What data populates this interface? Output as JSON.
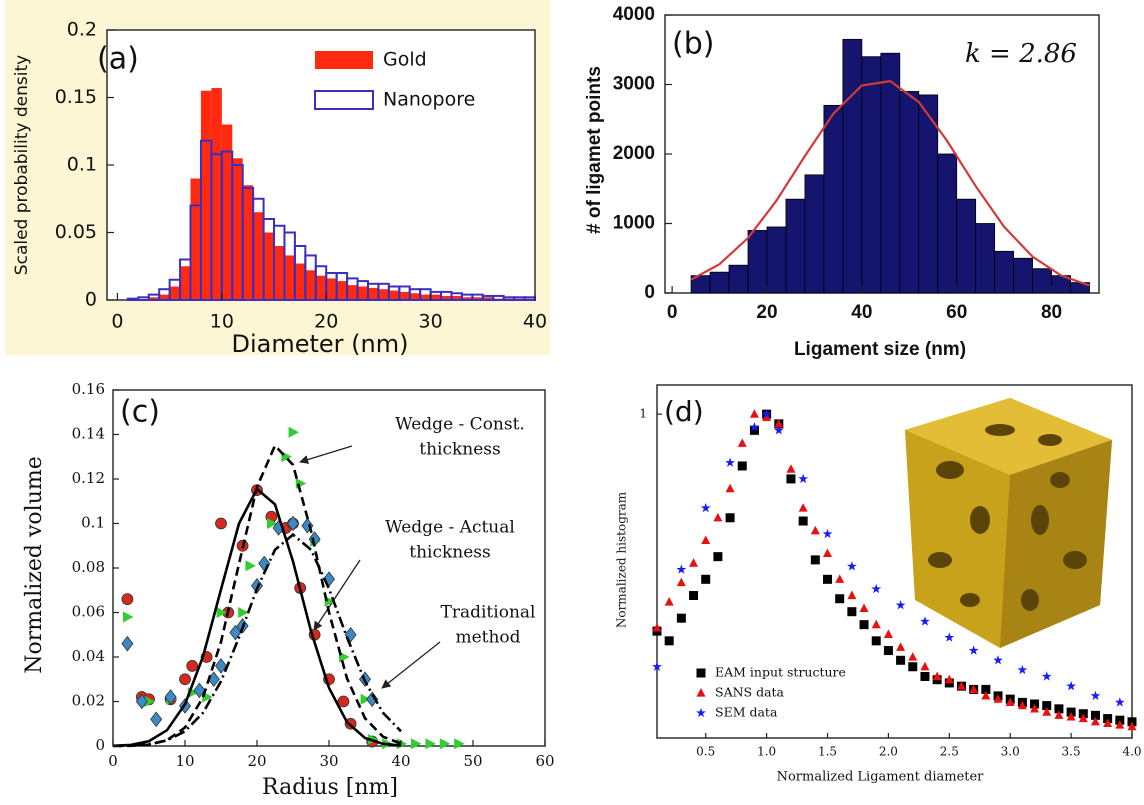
{
  "chart_data": [
    {
      "type": "histogram",
      "label": "(a)",
      "x_label": "Diameter (nm)",
      "y_label": "Scaled probability density",
      "xlim": [
        -1,
        40
      ],
      "ylim": [
        0,
        0.2
      ],
      "xticks": [
        0,
        10,
        20,
        30,
        40
      ],
      "yticks": [
        0,
        0.05,
        0.1,
        0.15,
        0.2
      ],
      "legend": "upper right",
      "bins": [
        0,
        1,
        2,
        3,
        4,
        5,
        6,
        7,
        8,
        9,
        10,
        11,
        12,
        13,
        14,
        15,
        16,
        17,
        18,
        19,
        20,
        21,
        22,
        23,
        24,
        25,
        26,
        27,
        28,
        29,
        30,
        31,
        32,
        33,
        34,
        35,
        36,
        37,
        38,
        39,
        40
      ],
      "series": [
        {
          "name": "Gold",
          "color": "#ff2a10",
          "fill": true,
          "values": [
            0,
            0,
            0,
            0.002,
            0.004,
            0.01,
            0.025,
            0.09,
            0.155,
            0.157,
            0.13,
            0.105,
            0.085,
            0.065,
            0.05,
            0.04,
            0.033,
            0.027,
            0.022,
            0.018,
            0.016,
            0.014,
            0.011,
            0.01,
            0.009,
            0.008,
            0.007,
            0.006,
            0.005,
            0.004,
            0.004,
            0.003,
            0.003,
            0.002,
            0.002,
            0.002,
            0.001,
            0.001,
            0.001,
            0.001
          ]
        },
        {
          "name": "Nanopore",
          "color": "#3a2fc0",
          "fill": false,
          "values": [
            0,
            0.001,
            0.002,
            0.004,
            0.008,
            0.015,
            0.03,
            0.07,
            0.118,
            0.108,
            0.11,
            0.1,
            0.083,
            0.075,
            0.06,
            0.055,
            0.05,
            0.04,
            0.033,
            0.025,
            0.02,
            0.02,
            0.016,
            0.014,
            0.012,
            0.012,
            0.01,
            0.01,
            0.008,
            0.008,
            0.006,
            0.006,
            0.005,
            0.004,
            0.004,
            0.003,
            0.003,
            0.002,
            0.002,
            0.002
          ]
        }
      ]
    },
    {
      "type": "histogram",
      "label": "(b)",
      "annotation": "k = 2.86",
      "x_label": "Ligament size (nm)",
      "y_label": "# of ligamet points",
      "xlim": [
        -1.5,
        90
      ],
      "ylim": [
        0,
        4000
      ],
      "xticks": [
        0,
        20,
        40,
        60,
        80
      ],
      "yticks": [
        0,
        1000,
        2000,
        3000,
        4000
      ],
      "bins": [
        4,
        8,
        12,
        16,
        20,
        24,
        28,
        32,
        36,
        40,
        44,
        48,
        52,
        56,
        60,
        64,
        68,
        72,
        76,
        80,
        84,
        88
      ],
      "series": [
        {
          "color": "#15146e",
          "fill": true,
          "values": [
            250,
            300,
            400,
            900,
            950,
            1350,
            1700,
            2700,
            3650,
            3400,
            3450,
            2900,
            2850,
            2000,
            1350,
            1000,
            600,
            500,
            350,
            250,
            150
          ]
        }
      ],
      "curves": [
        {
          "color": "#d23a3a",
          "dash": "solid",
          "x": [
            4,
            10,
            16,
            22,
            28,
            34,
            40,
            46,
            52,
            58,
            64,
            70,
            76,
            82,
            88
          ],
          "values": [
            193,
            415,
            791,
            1329,
            1971,
            2582,
            2986,
            3049,
            2748,
            2187,
            1537,
            952,
            523,
            252,
            108
          ]
        }
      ]
    },
    {
      "type": "scatter",
      "label": "(c)",
      "x_label": "Radius [nm]",
      "y_label": "Normalized volume",
      "xlim": [
        0,
        60
      ],
      "ylim": [
        0,
        0.16
      ],
      "xticks": [
        0,
        10,
        20,
        30,
        40,
        50,
        60
      ],
      "yticks": [
        0,
        0.02,
        0.04,
        0.06,
        0.08,
        0.1,
        0.12,
        0.14,
        0.16
      ],
      "annotations": [
        [
          "Wedge - Const.",
          "thickness"
        ],
        [
          "Wedge - Actual",
          "thickness"
        ],
        [
          "Traditional",
          "method"
        ]
      ],
      "series": [
        {
          "color": "#d42a1e",
          "marker": "circle",
          "x": [
            2,
            4,
            5,
            8,
            10,
            11,
            13,
            15,
            16,
            18,
            20,
            22,
            24,
            25,
            26,
            28,
            30,
            32,
            33,
            36
          ],
          "values": [
            0.066,
            0.022,
            0.021,
            0.021,
            0.03,
            0.036,
            0.04,
            0.1,
            0.06,
            0.09,
            0.115,
            0.103,
            0.098,
            0.1,
            0.071,
            0.05,
            0.03,
            0.02,
            0.01,
            0.002
          ]
        },
        {
          "color": "#33cc33",
          "marker": "triangle-right",
          "x": [
            2,
            5,
            8,
            11,
            13,
            15,
            18,
            19,
            22,
            24,
            25,
            26,
            28,
            30,
            32,
            35,
            36,
            38,
            40,
            42,
            44,
            46,
            48
          ],
          "values": [
            0.058,
            0.02,
            0.021,
            0.024,
            0.022,
            0.06,
            0.06,
            0.081,
            0.1,
            0.13,
            0.141,
            0.118,
            0.092,
            0.065,
            0.04,
            0.021,
            0.003,
            0.001,
            0.001,
            0.001,
            0.001,
            0.001,
            0.001
          ]
        },
        {
          "color": "#3a8ac8",
          "marker": "diamond",
          "x": [
            2,
            4,
            6,
            8,
            10,
            12,
            14,
            15,
            17,
            18,
            20,
            21,
            23,
            25,
            27,
            28,
            30,
            33,
            35,
            36
          ],
          "values": [
            0.046,
            0.02,
            0.012,
            0.022,
            0.018,
            0.025,
            0.03,
            0.036,
            0.051,
            0.054,
            0.072,
            0.082,
            0.098,
            0.1,
            0.099,
            0.093,
            0.075,
            0.05,
            0.03,
            0.021
          ]
        }
      ],
      "curves": [
        {
          "color": "#000000",
          "dash": "solid",
          "x": [
            0,
            2.5,
            5,
            7.5,
            10,
            12.5,
            15,
            17.5,
            20,
            22.5,
            25,
            27.5,
            30,
            32.5,
            35,
            37.5,
            40
          ],
          "values": [
            0.0001,
            0.0005,
            0.0022,
            0.0071,
            0.0188,
            0.0402,
            0.0704,
            0.1,
            0.1155,
            0.1086,
            0.083,
            0.0516,
            0.0261,
            0.0107,
            0.0036,
            0.001,
            0.0002
          ]
        },
        {
          "color": "#000000",
          "dash": "dashed",
          "x": [
            0,
            2.5,
            5,
            7.5,
            10,
            12.5,
            15,
            17.5,
            20,
            22.5,
            25,
            27.5,
            30,
            32.5,
            35,
            37.5,
            40
          ],
          "values": [
            0,
            0.0001,
            0.0006,
            0.0026,
            0.0083,
            0.0219,
            0.0468,
            0.0819,
            0.1164,
            0.135,
            0.1264,
            0.0967,
            0.0601,
            0.0304,
            0.0125,
            0.0042,
            0.0011
          ]
        },
        {
          "color": "#000000",
          "dash": "dashdot",
          "x": [
            0,
            2.5,
            5,
            7.5,
            10,
            12.5,
            15,
            17.5,
            20,
            22.5,
            25,
            27.5,
            30,
            32.5,
            35,
            37.5,
            40
          ],
          "values": [
            0.0001,
            0.0002,
            0.0008,
            0.0025,
            0.0066,
            0.0149,
            0.0291,
            0.0488,
            0.0707,
            0.0882,
            0.095,
            0.0882,
            0.0707,
            0.0488,
            0.0291,
            0.0149,
            0.0066
          ]
        }
      ]
    },
    {
      "type": "scatter",
      "label": "(d)",
      "x_label": "Normalized Ligament diameter",
      "y_label": "Normalized histogram",
      "xlim": [
        0.1,
        4.0
      ],
      "ylim": [
        0,
        1.09
      ],
      "xticks": [
        0.5,
        {
          "value": 1,
          "label": "1.0"
        },
        1.5,
        {
          "value": 2,
          "label": "2.0"
        },
        2.5,
        {
          "value": 3,
          "label": "3.0"
        },
        3.5,
        {
          "value": 4,
          "label": "4.0"
        }
      ],
      "yticks": [
        1
      ],
      "legend": "lower left",
      "series": [
        {
          "name": "EAM input structure",
          "color": "#000000",
          "marker": "square",
          "x": [
            0.1,
            0.2,
            0.3,
            0.4,
            0.5,
            0.6,
            0.7,
            0.8,
            0.9,
            1.0,
            1.1,
            1.2,
            1.3,
            1.4,
            1.5,
            1.6,
            1.7,
            1.8,
            1.9,
            2.0,
            2.1,
            2.2,
            2.3,
            2.4,
            2.5,
            2.6,
            2.7,
            2.8,
            2.9,
            3.0,
            3.1,
            3.2,
            3.3,
            3.4,
            3.5,
            3.6,
            3.7,
            3.8,
            3.9,
            4.0
          ],
          "values": [
            0.33,
            0.3,
            0.37,
            0.44,
            0.49,
            0.56,
            0.68,
            0.84,
            0.95,
            1.0,
            0.97,
            0.8,
            0.67,
            0.55,
            0.49,
            0.43,
            0.39,
            0.35,
            0.3,
            0.27,
            0.24,
            0.22,
            0.19,
            0.18,
            0.17,
            0.16,
            0.15,
            0.15,
            0.13,
            0.12,
            0.11,
            0.105,
            0.1,
            0.09,
            0.08,
            0.075,
            0.07,
            0.06,
            0.055,
            0.05
          ]
        },
        {
          "name": "SANS data",
          "color": "#e81010",
          "marker": "triangle",
          "x": [
            0.1,
            0.2,
            0.3,
            0.4,
            0.5,
            0.6,
            0.7,
            0.8,
            0.9,
            1.0,
            1.1,
            1.2,
            1.3,
            1.4,
            1.5,
            1.6,
            1.7,
            1.8,
            1.9,
            2.0,
            2.1,
            2.2,
            2.3,
            2.4,
            2.5,
            2.6,
            2.7,
            2.8,
            2.9,
            3.0,
            3.1,
            3.2,
            3.3,
            3.4,
            3.5,
            3.6,
            3.7,
            3.8,
            3.9,
            4.0
          ],
          "values": [
            0.34,
            0.42,
            0.48,
            0.54,
            0.61,
            0.68,
            0.77,
            0.91,
            1.0,
            0.99,
            0.97,
            0.83,
            0.71,
            0.64,
            0.57,
            0.49,
            0.44,
            0.4,
            0.35,
            0.32,
            0.28,
            0.25,
            0.22,
            0.19,
            0.18,
            0.16,
            0.15,
            0.13,
            0.12,
            0.11,
            0.1,
            0.09,
            0.08,
            0.07,
            0.065,
            0.06,
            0.05,
            0.045,
            0.04,
            0.035
          ]
        },
        {
          "name": "SEM data",
          "color": "#1a1aff",
          "marker": "star",
          "x": [
            0.1,
            0.3,
            0.5,
            0.7,
            0.9,
            1.0,
            1.1,
            1.3,
            1.5,
            1.7,
            1.9,
            2.1,
            2.3,
            2.5,
            2.7,
            2.9,
            3.1,
            3.3,
            3.5,
            3.7,
            3.9
          ],
          "values": [
            0.22,
            0.52,
            0.71,
            0.85,
            0.96,
            1.0,
            0.95,
            0.8,
            0.63,
            0.53,
            0.46,
            0.41,
            0.36,
            0.31,
            0.27,
            0.24,
            0.21,
            0.19,
            0.16,
            0.13,
            0.11
          ]
        }
      ]
    }
  ]
}
